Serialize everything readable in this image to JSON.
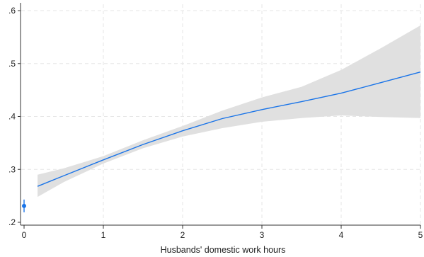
{
  "chart_data": {
    "type": "line",
    "title": "",
    "xlabel": "Husbands' domestic work hours",
    "ylabel": "",
    "xlim": [
      0,
      5
    ],
    "ylim": [
      0.2,
      0.6
    ],
    "grid": true,
    "x_ticks": [
      0,
      1,
      2,
      3,
      4,
      5
    ],
    "x_tick_labels": [
      "0",
      "1",
      "2",
      "3",
      "4",
      "5"
    ],
    "y_ticks": [
      0.2,
      0.3,
      0.4,
      0.5,
      0.6
    ],
    "y_tick_labels": [
      ".2",
      ".3",
      ".4",
      ".5",
      ".6"
    ],
    "series": [
      {
        "type": "line_with_ci",
        "color": "#1a74e8",
        "ci_color": "#e0e0e0",
        "x": [
          0.17,
          0.5,
          1.0,
          1.5,
          2.0,
          2.5,
          3.0,
          3.5,
          4.0,
          4.5,
          5.0
        ],
        "y": [
          0.268,
          0.288,
          0.318,
          0.347,
          0.373,
          0.396,
          0.413,
          0.428,
          0.444,
          0.464,
          0.484
        ],
        "ci_low": [
          0.248,
          0.276,
          0.311,
          0.34,
          0.362,
          0.378,
          0.39,
          0.397,
          0.402,
          0.399,
          0.397
        ],
        "ci_high": [
          0.29,
          0.302,
          0.325,
          0.355,
          0.382,
          0.411,
          0.436,
          0.456,
          0.488,
          0.529,
          0.572
        ]
      },
      {
        "type": "point_with_ci",
        "color": "#1a74e8",
        "x": [
          0
        ],
        "y": [
          0.231
        ],
        "ci_low": [
          0.219
        ],
        "ci_high": [
          0.243
        ]
      }
    ]
  }
}
